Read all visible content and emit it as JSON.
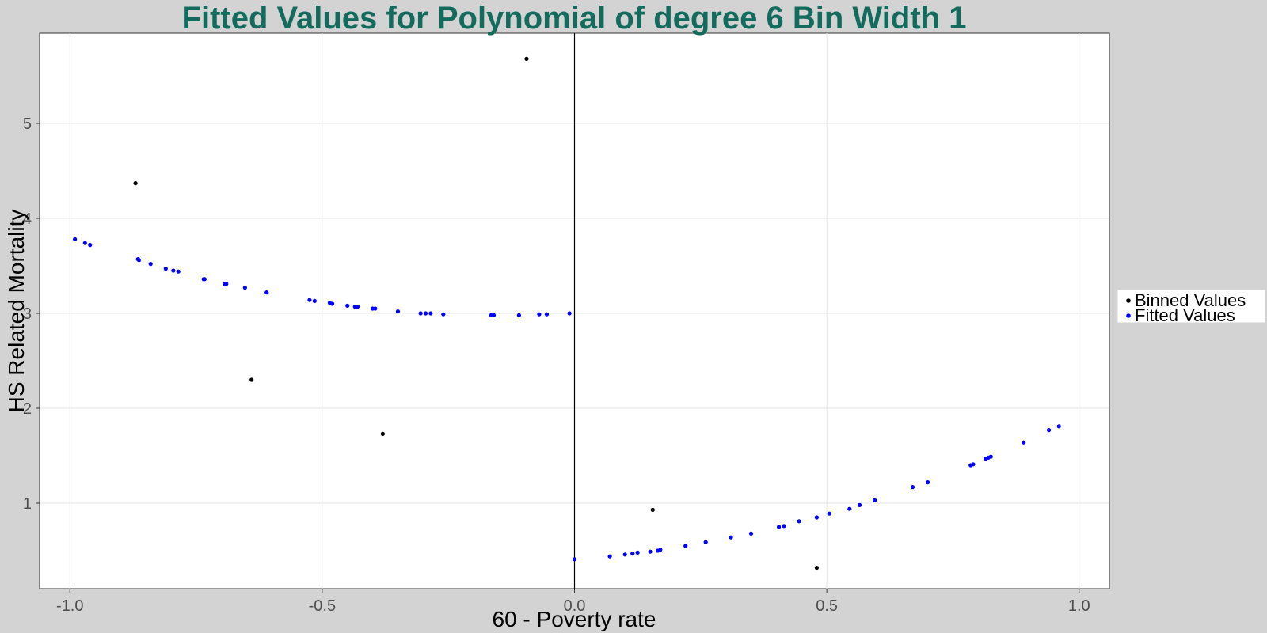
{
  "chart_data": {
    "type": "scatter",
    "title": "Fitted Values for Polynomial of degree 6 Bin Width 1",
    "xlabel": "60 - Poverty rate",
    "ylabel": "HS Related Mortality",
    "xlim": [
      -1.06,
      1.06
    ],
    "ylim": [
      0.1,
      5.95
    ],
    "xticks": [
      -1.0,
      -0.5,
      0.0,
      0.5,
      1.0
    ],
    "xtick_labels": [
      "-1.0",
      "-0.5",
      "0.0",
      "0.5",
      "1.0"
    ],
    "yticks": [
      1,
      2,
      3,
      4,
      5
    ],
    "ytick_labels": [
      "1",
      "2",
      "3",
      "4",
      "5"
    ],
    "grid": true,
    "vline": 0,
    "legend_position": "right",
    "series": [
      {
        "name": "Binned Values",
        "color": "#000000",
        "points": [
          [
            -0.87,
            4.37
          ],
          [
            -0.64,
            2.3
          ],
          [
            -0.38,
            1.73
          ],
          [
            -0.095,
            5.68
          ],
          [
            0.155,
            0.93
          ],
          [
            0.48,
            0.32
          ]
        ]
      },
      {
        "name": "Fitted Values",
        "color": "#0000ff",
        "points": [
          [
            -0.99,
            3.78
          ],
          [
            -0.97,
            3.74
          ],
          [
            -0.96,
            3.72
          ],
          [
            -0.865,
            3.57
          ],
          [
            -0.863,
            3.56
          ],
          [
            -0.84,
            3.52
          ],
          [
            -0.81,
            3.47
          ],
          [
            -0.795,
            3.45
          ],
          [
            -0.785,
            3.44
          ],
          [
            -0.735,
            3.36
          ],
          [
            -0.733,
            3.36
          ],
          [
            -0.693,
            3.31
          ],
          [
            -0.69,
            3.31
          ],
          [
            -0.653,
            3.27
          ],
          [
            -0.61,
            3.22
          ],
          [
            -0.525,
            3.14
          ],
          [
            -0.515,
            3.13
          ],
          [
            -0.485,
            3.11
          ],
          [
            -0.48,
            3.1
          ],
          [
            -0.45,
            3.08
          ],
          [
            -0.435,
            3.07
          ],
          [
            -0.43,
            3.07
          ],
          [
            -0.4,
            3.05
          ],
          [
            -0.395,
            3.05
          ],
          [
            -0.35,
            3.02
          ],
          [
            -0.305,
            3.0
          ],
          [
            -0.295,
            3.0
          ],
          [
            -0.285,
            3.0
          ],
          [
            -0.26,
            2.99
          ],
          [
            -0.165,
            2.98
          ],
          [
            -0.16,
            2.98
          ],
          [
            -0.11,
            2.98
          ],
          [
            -0.07,
            2.99
          ],
          [
            -0.055,
            2.99
          ],
          [
            -0.01,
            3.0
          ],
          [
            0.0,
            0.41
          ],
          [
            0.07,
            0.44
          ],
          [
            0.1,
            0.46
          ],
          [
            0.115,
            0.47
          ],
          [
            0.125,
            0.48
          ],
          [
            0.15,
            0.49
          ],
          [
            0.165,
            0.5
          ],
          [
            0.17,
            0.51
          ],
          [
            0.22,
            0.55
          ],
          [
            0.26,
            0.59
          ],
          [
            0.31,
            0.64
          ],
          [
            0.35,
            0.68
          ],
          [
            0.405,
            0.75
          ],
          [
            0.415,
            0.76
          ],
          [
            0.445,
            0.81
          ],
          [
            0.48,
            0.85
          ],
          [
            0.505,
            0.89
          ],
          [
            0.545,
            0.94
          ],
          [
            0.565,
            0.98
          ],
          [
            0.595,
            1.03
          ],
          [
            0.67,
            1.17
          ],
          [
            0.7,
            1.22
          ],
          [
            0.785,
            1.4
          ],
          [
            0.79,
            1.41
          ],
          [
            0.815,
            1.47
          ],
          [
            0.82,
            1.48
          ],
          [
            0.825,
            1.49
          ],
          [
            0.89,
            1.64
          ],
          [
            0.94,
            1.77
          ],
          [
            0.96,
            1.81
          ]
        ]
      }
    ]
  },
  "colors": {
    "title": "#126b5d",
    "panel_bg": "#ffffff",
    "plot_bg": "#d3d3d3",
    "grid": "#e5e5e5",
    "vline": "#000000"
  }
}
